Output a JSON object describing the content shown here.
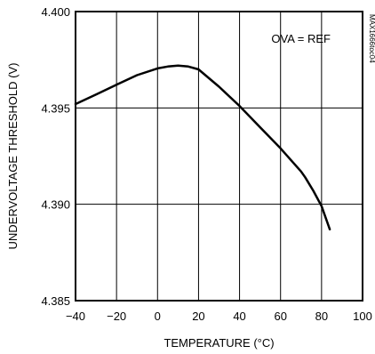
{
  "chart_data": {
    "type": "line",
    "xlabel": "TEMPERATURE (°C)",
    "ylabel": "UNDERVOLTAGE THRESHOLD (V)",
    "xlim": [
      -40,
      100
    ],
    "ylim": [
      4.385,
      4.4
    ],
    "x_ticks": [
      "-40",
      "-20",
      "0",
      "20",
      "40",
      "60",
      "80",
      "100"
    ],
    "y_ticks": [
      "4.385",
      "4.390",
      "4.395",
      "4.400"
    ],
    "grid": true,
    "annotation": "OVA = REF",
    "figure_code": "MAX1666toc04",
    "series": [
      {
        "x": [
          -40,
          -30,
          -20,
          -10,
          0,
          5,
          10,
          15,
          20,
          30,
          40,
          50,
          60,
          70,
          72,
          76,
          80,
          82,
          84
        ],
        "y": [
          4.3952,
          4.3957,
          4.3962,
          4.3967,
          4.39705,
          4.39715,
          4.3972,
          4.39715,
          4.397,
          4.3961,
          4.3951,
          4.394,
          4.3929,
          4.3917,
          4.3914,
          4.3907,
          4.3899,
          4.3893,
          4.3887
        ]
      }
    ]
  }
}
